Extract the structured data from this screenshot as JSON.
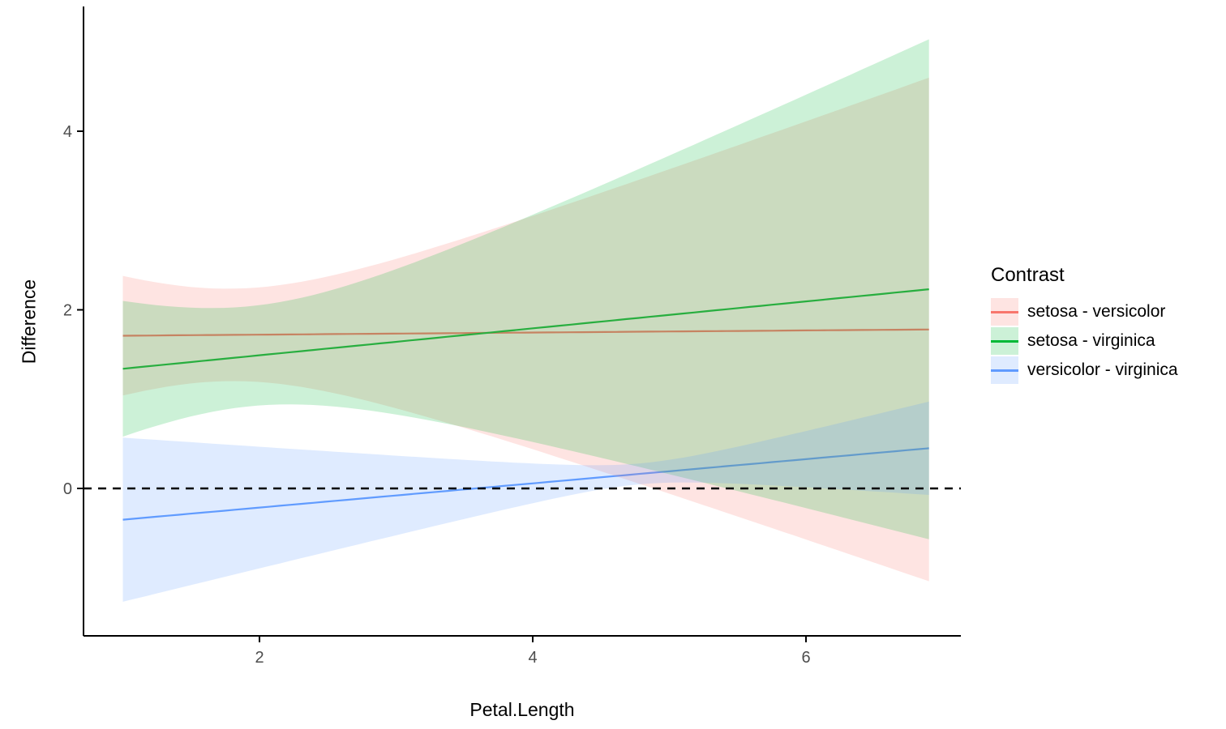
{
  "chart_data": {
    "type": "line",
    "title": "",
    "xlabel": "Petal.Length",
    "ylabel": "Difference",
    "x_ticks": [
      "2",
      "4",
      "6"
    ],
    "x_tick_values": [
      2,
      4,
      6
    ],
    "y_ticks": [
      "0",
      "2",
      "4"
    ],
    "y_tick_values": [
      0,
      2,
      4
    ],
    "xlim": [
      0.71,
      7.13
    ],
    "ylim": [
      -1.65,
      5.38
    ],
    "x_domain": [
      1.0,
      6.9
    ],
    "grid": false,
    "background": "#FFFFFF",
    "axis_color": "#000000",
    "tick_label_color": "#4D4D4D",
    "band_opacity": 0.2,
    "reference_line": {
      "y": 0,
      "style": "dashed",
      "color": "#000000"
    },
    "legend": {
      "title": "Contrast",
      "position": "right"
    },
    "series": [
      {
        "name": "setosa - versicolor",
        "color": "#F8766D",
        "x": [
          1,
          2,
          3,
          4,
          5,
          6,
          6.9
        ],
        "y": [
          1.71,
          1.72,
          1.73,
          1.75,
          1.76,
          1.77,
          1.78
        ],
        "ymin": [
          1.04,
          1.19,
          0.9,
          0.44,
          -0.06,
          -0.57,
          -1.04
        ],
        "ymax": [
          2.38,
          2.25,
          2.57,
          3.05,
          3.57,
          4.11,
          4.6
        ],
        "line_model": {
          "x1": 1,
          "y1": 1.71,
          "x2": 6.9,
          "y2": 1.78
        },
        "band_model": {
          "a": 0.2675,
          "b": 0.2937,
          "xw": 1.786
        }
      },
      {
        "name": "setosa - virginica",
        "color": "#00BA38",
        "x": [
          1,
          2,
          3,
          4,
          5,
          6,
          6.9
        ],
        "y": [
          1.34,
          1.49,
          1.64,
          1.79,
          1.94,
          2.09,
          2.23
        ],
        "ymin": [
          0.58,
          0.93,
          0.83,
          0.52,
          0.16,
          -0.22,
          -0.57
        ],
        "ymax": [
          2.1,
          2.05,
          2.46,
          3.07,
          3.73,
          4.41,
          5.03
        ],
        "line_model": {
          "x1": 1,
          "y1": 1.34,
          "x2": 6.9,
          "y2": 2.23
        },
        "band_model": {
          "a": 0.3142,
          "b": 0.3045,
          "xw": 1.93
        }
      },
      {
        "name": "versicolor - virginica",
        "color": "#619CFF",
        "x": [
          1,
          2,
          3,
          4,
          5,
          6,
          6.9
        ],
        "y": [
          -0.35,
          -0.21,
          -0.08,
          0.06,
          0.19,
          0.33,
          0.45
        ],
        "ymin": [
          -1.27,
          -0.9,
          -0.52,
          -0.17,
          0.06,
          0.01,
          -0.07
        ],
        "ymax": [
          0.57,
          0.47,
          0.37,
          0.28,
          0.32,
          0.64,
          0.97
        ],
        "line_model": {
          "x1": 1,
          "y1": -0.35,
          "x2": 6.9,
          "y2": 0.45
        },
        "band_model": {
          "a": 0.0136,
          "b": 0.058,
          "xw": 4.786
        }
      }
    ]
  }
}
